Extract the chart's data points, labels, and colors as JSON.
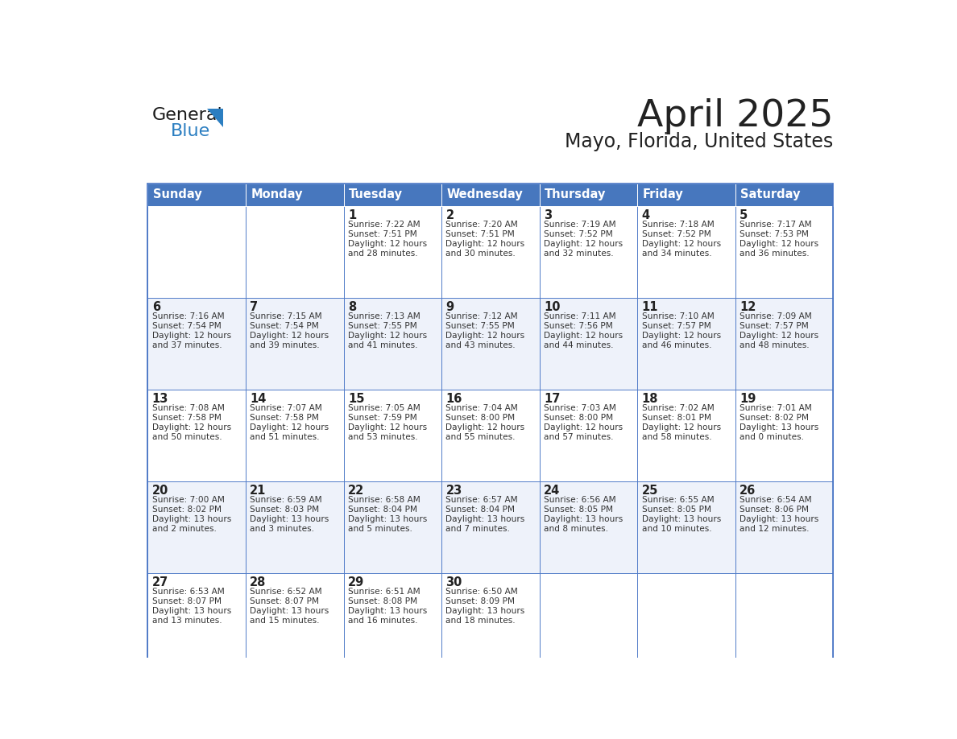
{
  "title": "April 2025",
  "subtitle": "Mayo, Florida, United States",
  "header_bg": "#4777BE",
  "header_text_color": "#FFFFFF",
  "cell_bg_white": "#FFFFFF",
  "cell_bg_light": "#EEF2FA",
  "day_headers": [
    "Sunday",
    "Monday",
    "Tuesday",
    "Wednesday",
    "Thursday",
    "Friday",
    "Saturday"
  ],
  "grid_color": "#4472C4",
  "day_num_color": "#222222",
  "cell_text_color": "#333333",
  "calendar": [
    [
      {
        "day": "",
        "lines": []
      },
      {
        "day": "",
        "lines": []
      },
      {
        "day": "1",
        "lines": [
          "Sunrise: 7:22 AM",
          "Sunset: 7:51 PM",
          "Daylight: 12 hours",
          "and 28 minutes."
        ]
      },
      {
        "day": "2",
        "lines": [
          "Sunrise: 7:20 AM",
          "Sunset: 7:51 PM",
          "Daylight: 12 hours",
          "and 30 minutes."
        ]
      },
      {
        "day": "3",
        "lines": [
          "Sunrise: 7:19 AM",
          "Sunset: 7:52 PM",
          "Daylight: 12 hours",
          "and 32 minutes."
        ]
      },
      {
        "day": "4",
        "lines": [
          "Sunrise: 7:18 AM",
          "Sunset: 7:52 PM",
          "Daylight: 12 hours",
          "and 34 minutes."
        ]
      },
      {
        "day": "5",
        "lines": [
          "Sunrise: 7:17 AM",
          "Sunset: 7:53 PM",
          "Daylight: 12 hours",
          "and 36 minutes."
        ]
      }
    ],
    [
      {
        "day": "6",
        "lines": [
          "Sunrise: 7:16 AM",
          "Sunset: 7:54 PM",
          "Daylight: 12 hours",
          "and 37 minutes."
        ]
      },
      {
        "day": "7",
        "lines": [
          "Sunrise: 7:15 AM",
          "Sunset: 7:54 PM",
          "Daylight: 12 hours",
          "and 39 minutes."
        ]
      },
      {
        "day": "8",
        "lines": [
          "Sunrise: 7:13 AM",
          "Sunset: 7:55 PM",
          "Daylight: 12 hours",
          "and 41 minutes."
        ]
      },
      {
        "day": "9",
        "lines": [
          "Sunrise: 7:12 AM",
          "Sunset: 7:55 PM",
          "Daylight: 12 hours",
          "and 43 minutes."
        ]
      },
      {
        "day": "10",
        "lines": [
          "Sunrise: 7:11 AM",
          "Sunset: 7:56 PM",
          "Daylight: 12 hours",
          "and 44 minutes."
        ]
      },
      {
        "day": "11",
        "lines": [
          "Sunrise: 7:10 AM",
          "Sunset: 7:57 PM",
          "Daylight: 12 hours",
          "and 46 minutes."
        ]
      },
      {
        "day": "12",
        "lines": [
          "Sunrise: 7:09 AM",
          "Sunset: 7:57 PM",
          "Daylight: 12 hours",
          "and 48 minutes."
        ]
      }
    ],
    [
      {
        "day": "13",
        "lines": [
          "Sunrise: 7:08 AM",
          "Sunset: 7:58 PM",
          "Daylight: 12 hours",
          "and 50 minutes."
        ]
      },
      {
        "day": "14",
        "lines": [
          "Sunrise: 7:07 AM",
          "Sunset: 7:58 PM",
          "Daylight: 12 hours",
          "and 51 minutes."
        ]
      },
      {
        "day": "15",
        "lines": [
          "Sunrise: 7:05 AM",
          "Sunset: 7:59 PM",
          "Daylight: 12 hours",
          "and 53 minutes."
        ]
      },
      {
        "day": "16",
        "lines": [
          "Sunrise: 7:04 AM",
          "Sunset: 8:00 PM",
          "Daylight: 12 hours",
          "and 55 minutes."
        ]
      },
      {
        "day": "17",
        "lines": [
          "Sunrise: 7:03 AM",
          "Sunset: 8:00 PM",
          "Daylight: 12 hours",
          "and 57 minutes."
        ]
      },
      {
        "day": "18",
        "lines": [
          "Sunrise: 7:02 AM",
          "Sunset: 8:01 PM",
          "Daylight: 12 hours",
          "and 58 minutes."
        ]
      },
      {
        "day": "19",
        "lines": [
          "Sunrise: 7:01 AM",
          "Sunset: 8:02 PM",
          "Daylight: 13 hours",
          "and 0 minutes."
        ]
      }
    ],
    [
      {
        "day": "20",
        "lines": [
          "Sunrise: 7:00 AM",
          "Sunset: 8:02 PM",
          "Daylight: 13 hours",
          "and 2 minutes."
        ]
      },
      {
        "day": "21",
        "lines": [
          "Sunrise: 6:59 AM",
          "Sunset: 8:03 PM",
          "Daylight: 13 hours",
          "and 3 minutes."
        ]
      },
      {
        "day": "22",
        "lines": [
          "Sunrise: 6:58 AM",
          "Sunset: 8:04 PM",
          "Daylight: 13 hours",
          "and 5 minutes."
        ]
      },
      {
        "day": "23",
        "lines": [
          "Sunrise: 6:57 AM",
          "Sunset: 8:04 PM",
          "Daylight: 13 hours",
          "and 7 minutes."
        ]
      },
      {
        "day": "24",
        "lines": [
          "Sunrise: 6:56 AM",
          "Sunset: 8:05 PM",
          "Daylight: 13 hours",
          "and 8 minutes."
        ]
      },
      {
        "day": "25",
        "lines": [
          "Sunrise: 6:55 AM",
          "Sunset: 8:05 PM",
          "Daylight: 13 hours",
          "and 10 minutes."
        ]
      },
      {
        "day": "26",
        "lines": [
          "Sunrise: 6:54 AM",
          "Sunset: 8:06 PM",
          "Daylight: 13 hours",
          "and 12 minutes."
        ]
      }
    ],
    [
      {
        "day": "27",
        "lines": [
          "Sunrise: 6:53 AM",
          "Sunset: 8:07 PM",
          "Daylight: 13 hours",
          "and 13 minutes."
        ]
      },
      {
        "day": "28",
        "lines": [
          "Sunrise: 6:52 AM",
          "Sunset: 8:07 PM",
          "Daylight: 13 hours",
          "and 15 minutes."
        ]
      },
      {
        "day": "29",
        "lines": [
          "Sunrise: 6:51 AM",
          "Sunset: 8:08 PM",
          "Daylight: 13 hours",
          "and 16 minutes."
        ]
      },
      {
        "day": "30",
        "lines": [
          "Sunrise: 6:50 AM",
          "Sunset: 8:09 PM",
          "Daylight: 13 hours",
          "and 18 minutes."
        ]
      },
      {
        "day": "",
        "lines": []
      },
      {
        "day": "",
        "lines": []
      },
      {
        "day": "",
        "lines": []
      }
    ]
  ],
  "logo_general_color": "#1a1a1a",
  "logo_blue_color": "#2B7EC1",
  "fig_width": 11.88,
  "fig_height": 9.18,
  "dpi": 100
}
